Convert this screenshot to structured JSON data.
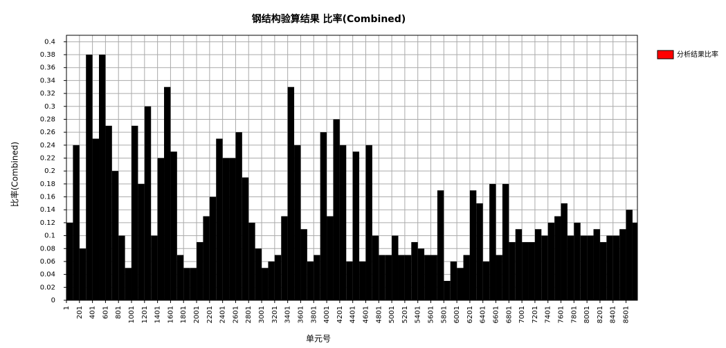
{
  "chart_data": {
    "type": "bar",
    "title": "钢结构验算结果 比率(Combined)",
    "x_label": "单元号",
    "y_label": "比率(Combined)",
    "x": [
      1,
      101,
      201,
      301,
      401,
      501,
      601,
      701,
      801,
      901,
      1001,
      1101,
      1201,
      1301,
      1401,
      1501,
      1601,
      1701,
      1801,
      1901,
      2001,
      2101,
      2201,
      2301,
      2401,
      2501,
      2601,
      2701,
      2801,
      2901,
      3001,
      3101,
      3201,
      3301,
      3401,
      3501,
      3601,
      3701,
      3801,
      3901,
      4001,
      4101,
      4201,
      4301,
      4401,
      4501,
      4601,
      4701,
      4801,
      4901,
      5001,
      5101,
      5201,
      5301,
      5401,
      5501,
      5601,
      5701,
      5801,
      5901,
      6001,
      6101,
      6201,
      6301,
      6401,
      6501,
      6601,
      6701,
      6801,
      6901,
      7001,
      7101,
      7201,
      7301,
      7401,
      7501,
      7601,
      7701,
      7801,
      7901,
      8001,
      8101,
      8201,
      8301,
      8401,
      8501,
      8601,
      8701
    ],
    "series": [
      {
        "name": "分析结果比率",
        "color": "#000000",
        "values": [
          0.12,
          0.24,
          0.08,
          0.38,
          0.25,
          0.38,
          0.27,
          0.2,
          0.1,
          0.05,
          0.27,
          0.18,
          0.3,
          0.1,
          0.22,
          0.33,
          0.23,
          0.07,
          0.05,
          0.05,
          0.09,
          0.13,
          0.16,
          0.25,
          0.22,
          0.22,
          0.26,
          0.19,
          0.12,
          0.08,
          0.05,
          0.06,
          0.07,
          0.13,
          0.33,
          0.24,
          0.11,
          0.06,
          0.07,
          0.26,
          0.13,
          0.28,
          0.24,
          0.06,
          0.23,
          0.06,
          0.24,
          0.1,
          0.07,
          0.07,
          0.1,
          0.07,
          0.07,
          0.09,
          0.08,
          0.07,
          0.07,
          0.17,
          0.03,
          0.06,
          0.05,
          0.07,
          0.17,
          0.15,
          0.06,
          0.18,
          0.07,
          0.18,
          0.09,
          0.11,
          0.09,
          0.09,
          0.11,
          0.1,
          0.12,
          0.13,
          0.15,
          0.1,
          0.12,
          0.1,
          0.1,
          0.11,
          0.09,
          0.1,
          0.1,
          0.11,
          0.14,
          0.12
        ]
      }
    ],
    "legend_color": "#ff0000",
    "xlim": [
      1,
      8776
    ],
    "ylim": [
      0,
      0.41
    ],
    "xticks": [
      1,
      201,
      401,
      601,
      801,
      1001,
      1201,
      1401,
      1601,
      1801,
      2001,
      2201,
      2401,
      2601,
      2801,
      3001,
      3201,
      3401,
      3601,
      3801,
      4001,
      4201,
      4401,
      4601,
      4801,
      5001,
      5201,
      5401,
      5601,
      5801,
      6001,
      6201,
      6401,
      6601,
      6801,
      7001,
      7201,
      7401,
      7601,
      7801,
      8001,
      8201,
      8401,
      8601
    ],
    "yticks": [
      0,
      0.02,
      0.04,
      0.06,
      0.08,
      0.1,
      0.12,
      0.14,
      0.16,
      0.18,
      0.2,
      0.22,
      0.24,
      0.26,
      0.28,
      0.3,
      0.32,
      0.34,
      0.36,
      0.38,
      0.4
    ],
    "grid": true,
    "legend": "right"
  }
}
